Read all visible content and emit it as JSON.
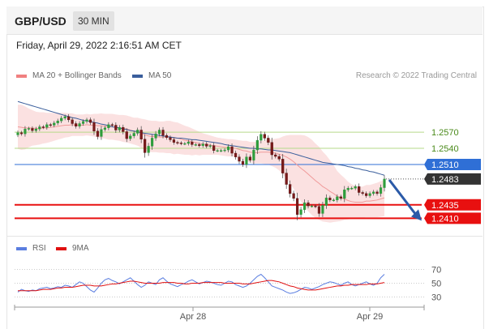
{
  "header": {
    "pair": "GBP/USD",
    "timeframe": "30 MIN"
  },
  "datetime": "Friday, April 29, 2022 2:16:51 AM CET",
  "legend": {
    "ma20_label": "MA 20 + Bollinger Bands",
    "ma20_color": "#f08080",
    "ma50_label": "MA 50",
    "ma50_color": "#3a5e9c"
  },
  "credit": "Research © 2022 Trading Central",
  "rsi_legend": {
    "rsi_label": "RSI",
    "rsi_color": "#5b7ee0",
    "ma9_label": "9MA",
    "ma9_color": "#e01010"
  },
  "chart_data": [
    {
      "type": "candlestick",
      "ylim": [
        1.2385,
        1.265
      ],
      "x_ticks": [
        "Apr 28",
        "Apr 29"
      ],
      "levels": [
        {
          "value": 1.257,
          "label": "1.2570",
          "kind": "resistance",
          "color": "#b6d98a"
        },
        {
          "value": 1.254,
          "label": "1.2540",
          "kind": "resistance",
          "color": "#b6d98a"
        },
        {
          "value": 1.251,
          "label": "1.2510",
          "kind": "pivot",
          "color": "#2f6fd6"
        },
        {
          "value": 1.2483,
          "label": "1.2483",
          "kind": "last price",
          "color": "#333333"
        },
        {
          "value": 1.2435,
          "label": "1.2435",
          "kind": "support",
          "color": "#e81010"
        },
        {
          "value": 1.241,
          "label": "1.2410",
          "kind": "support",
          "color": "#e81010"
        }
      ],
      "close": [
        1.2569,
        1.2567,
        1.2576,
        1.2577,
        1.2573,
        1.2576,
        1.258,
        1.2579,
        1.2584,
        1.2583,
        1.2587,
        1.2591,
        1.2596,
        1.2599,
        1.2593,
        1.2586,
        1.2581,
        1.2586,
        1.259,
        1.2593,
        1.2588,
        1.2572,
        1.2562,
        1.2575,
        1.2578,
        1.2584,
        1.2583,
        1.2574,
        1.2579,
        1.2571,
        1.2558,
        1.2563,
        1.2568,
        1.2574,
        1.2557,
        1.2532,
        1.2544,
        1.2559,
        1.2567,
        1.2574,
        1.2564,
        1.256,
        1.2556,
        1.2551,
        1.255,
        1.2549,
        1.2549,
        1.2552,
        1.2547,
        1.2547,
        1.2545,
        1.2548,
        1.2544,
        1.2545,
        1.2536,
        1.2536,
        1.2536,
        1.2537,
        1.2543,
        1.2531,
        1.2524,
        1.2516,
        1.251,
        1.2524,
        1.2518,
        1.2537,
        1.2555,
        1.2566,
        1.2559,
        1.2551,
        1.2528,
        1.2525,
        1.252,
        1.2494,
        1.2473,
        1.2456,
        1.2447,
        1.2417,
        1.2426,
        1.2439,
        1.2433,
        1.2433,
        1.2432,
        1.2419,
        1.2434,
        1.2448,
        1.2444,
        1.2444,
        1.245,
        1.2447,
        1.2463,
        1.2466,
        1.2466,
        1.2469,
        1.2458,
        1.2456,
        1.2452,
        1.2456,
        1.2459,
        1.2456,
        1.2467,
        1.2483
      ],
      "ma20": [
        1.258,
        1.2579,
        1.2578,
        1.2578,
        1.2578,
        1.2577,
        1.2577,
        1.2578,
        1.2578,
        1.2579,
        1.258,
        1.2581,
        1.2582,
        1.2583,
        1.2583,
        1.2584,
        1.2583,
        1.2583,
        1.2583,
        1.2584,
        1.2583,
        1.2583,
        1.2582,
        1.2582,
        1.2581,
        1.258,
        1.258,
        1.2579,
        1.2578,
        1.2577,
        1.2576,
        1.2574,
        1.2572,
        1.2571,
        1.2568,
        1.2565,
        1.2563,
        1.2562,
        1.2562,
        1.2561,
        1.2561,
        1.2561,
        1.2561,
        1.2559,
        1.2559,
        1.2557,
        1.2555,
        1.2554,
        1.2552,
        1.2551,
        1.2549,
        1.2548,
        1.2547,
        1.2546,
        1.2545,
        1.2544,
        1.2543,
        1.2542,
        1.2541,
        1.2541,
        1.254,
        1.2538,
        1.2536,
        1.2535,
        1.2533,
        1.2532,
        1.2532,
        1.2533,
        1.2533,
        1.2533,
        1.2532,
        1.2531,
        1.2529,
        1.2527,
        1.2524,
        1.252,
        1.2515,
        1.2509,
        1.2503,
        1.2498,
        1.2492,
        1.2486,
        1.248,
        1.2475,
        1.2469,
        1.2465,
        1.246,
        1.2456,
        1.2451,
        1.2448,
        1.2446,
        1.2443,
        1.2441,
        1.244,
        1.244,
        1.244,
        1.2442,
        1.2442,
        1.2443,
        1.2444,
        1.2446,
        1.2448
      ],
      "ma50": [
        1.2627,
        1.2625,
        1.2623,
        1.2621,
        1.2619,
        1.2617,
        1.2615,
        1.2613,
        1.2611,
        1.2609,
        1.2607,
        1.2605,
        1.2603,
        1.2601,
        1.2599,
        1.2597,
        1.2596,
        1.2594,
        1.2592,
        1.2591,
        1.259,
        1.2588,
        1.2587,
        1.2585,
        1.2584,
        1.2582,
        1.258,
        1.2579,
        1.2578,
        1.2576,
        1.2575,
        1.2573,
        1.2572,
        1.2571,
        1.2569,
        1.2568,
        1.2567,
        1.2566,
        1.2565,
        1.2564,
        1.2563,
        1.2562,
        1.2561,
        1.256,
        1.2559,
        1.2559,
        1.2558,
        1.2557,
        1.2556,
        1.2556,
        1.2555,
        1.2554,
        1.2553,
        1.2552,
        1.2551,
        1.255,
        1.2549,
        1.2547,
        1.2546,
        1.2545,
        1.2544,
        1.2543,
        1.2542,
        1.2541,
        1.254,
        1.254,
        1.2539,
        1.2539,
        1.2538,
        1.2537,
        1.2537,
        1.2536,
        1.2535,
        1.2534,
        1.2533,
        1.2532,
        1.253,
        1.2528,
        1.2526,
        1.2524,
        1.2522,
        1.252,
        1.2518,
        1.2516,
        1.2514,
        1.2513,
        1.2512,
        1.2511,
        1.251,
        1.2509,
        1.2508,
        1.2506,
        1.2505,
        1.2503,
        1.2502,
        1.25,
        1.2499,
        1.2497,
        1.2496,
        1.2494,
        1.2492,
        1.249
      ],
      "bb_half_width": [
        0.0041,
        0.0042,
        0.004,
        0.0036,
        0.0033,
        0.0031,
        0.003,
        0.0029,
        0.0028,
        0.0027,
        0.0026,
        0.0025,
        0.0024,
        0.0023,
        0.0022,
        0.0021,
        0.002,
        0.002,
        0.002,
        0.002,
        0.002,
        0.0021,
        0.0022,
        0.0023,
        0.0023,
        0.0024,
        0.0024,
        0.0024,
        0.0024,
        0.0025,
        0.0025,
        0.0025,
        0.0025,
        0.0026,
        0.0027,
        0.0029,
        0.0029,
        0.0029,
        0.0029,
        0.0029,
        0.0029,
        0.003,
        0.003,
        0.003,
        0.0029,
        0.0028,
        0.0027,
        0.0026,
        0.0025,
        0.0023,
        0.0022,
        0.002,
        0.0019,
        0.0018,
        0.0017,
        0.0016,
        0.0016,
        0.0016,
        0.0016,
        0.0016,
        0.0016,
        0.0017,
        0.0018,
        0.0019,
        0.0019,
        0.002,
        0.002,
        0.0021,
        0.0022,
        0.0023,
        0.0025,
        0.0027,
        0.003,
        0.0035,
        0.004,
        0.0045,
        0.005,
        0.0056,
        0.0062,
        0.0066,
        0.0069,
        0.007,
        0.0069,
        0.0068,
        0.0065,
        0.0062,
        0.0058,
        0.0053,
        0.0047,
        0.0043,
        0.0039,
        0.0035,
        0.0032,
        0.003,
        0.0029,
        0.0029,
        0.003,
        0.003,
        0.0031,
        0.0032,
        0.0033,
        0.0034
      ],
      "forecast": {
        "from": 1.2483,
        "to": 1.241,
        "direction": "down"
      }
    },
    {
      "type": "line",
      "title": "RSI",
      "ylim": [
        15,
        85
      ],
      "levels": [
        70,
        50,
        30
      ],
      "series": [
        {
          "name": "RSI",
          "values": [
            37,
            41,
            39,
            38,
            40,
            39,
            42,
            43,
            44,
            42,
            43,
            45,
            44,
            47,
            46,
            44,
            48,
            52,
            50,
            45,
            40,
            37,
            43,
            50,
            55,
            57,
            54,
            52,
            49,
            52,
            55,
            58,
            53,
            48,
            44,
            47,
            52,
            50,
            48,
            55,
            58,
            53,
            49,
            47,
            45,
            48,
            50,
            53,
            55,
            52,
            49,
            51,
            53,
            52,
            50,
            48,
            47,
            50,
            53,
            52,
            48,
            46,
            44,
            46,
            50,
            55,
            60,
            63,
            58,
            52,
            46,
            44,
            42,
            40,
            37,
            35,
            36,
            38,
            41,
            44,
            43,
            41,
            43,
            45,
            48,
            50,
            52,
            51,
            49,
            47,
            50,
            52,
            48,
            46,
            48,
            50,
            52,
            49,
            47,
            50,
            58,
            63
          ]
        },
        {
          "name": "9MA",
          "values": [
            39,
            39,
            39,
            39,
            39,
            39,
            40,
            41,
            41,
            41,
            42,
            43,
            43,
            44,
            44,
            44,
            45,
            46,
            47,
            47,
            47,
            46,
            46,
            46,
            47,
            48,
            49,
            49,
            50,
            51,
            52,
            53,
            53,
            52,
            51,
            50,
            50,
            50,
            50,
            50,
            51,
            51,
            51,
            51,
            50,
            50,
            49,
            49,
            50,
            50,
            50,
            51,
            51,
            51,
            51,
            51,
            51,
            50,
            50,
            50,
            50,
            50,
            49,
            49,
            49,
            50,
            51,
            52,
            53,
            54,
            54,
            53,
            52,
            50,
            48,
            46,
            45,
            43,
            42,
            41,
            40,
            40,
            40,
            41,
            42,
            43,
            44,
            45,
            46,
            46,
            47,
            47,
            48,
            48,
            48,
            48,
            48,
            49,
            49,
            49,
            50,
            51
          ]
        }
      ]
    }
  ]
}
